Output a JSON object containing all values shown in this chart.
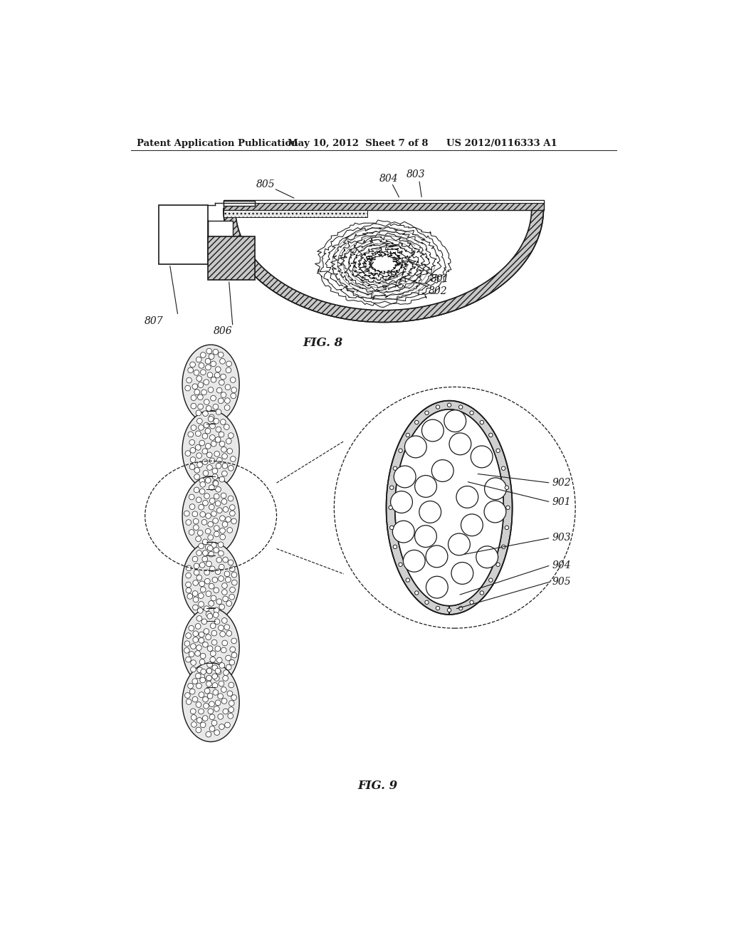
{
  "header_left": "Patent Application Publication",
  "header_mid": "May 10, 2012  Sheet 7 of 8",
  "header_right": "US 2012/0116333 A1",
  "fig8_label": "FIG. 8",
  "fig9_label": "FIG. 9",
  "bg_color": "#ffffff",
  "line_color": "#1a1a1a",
  "label_801": "801",
  "label_802": "802",
  "label_803": "803",
  "label_804": "804",
  "label_805": "805",
  "label_806": "806",
  "label_807": "807",
  "label_901": "901",
  "label_902": "902",
  "label_903": "903",
  "label_904": "904",
  "label_905": "905"
}
